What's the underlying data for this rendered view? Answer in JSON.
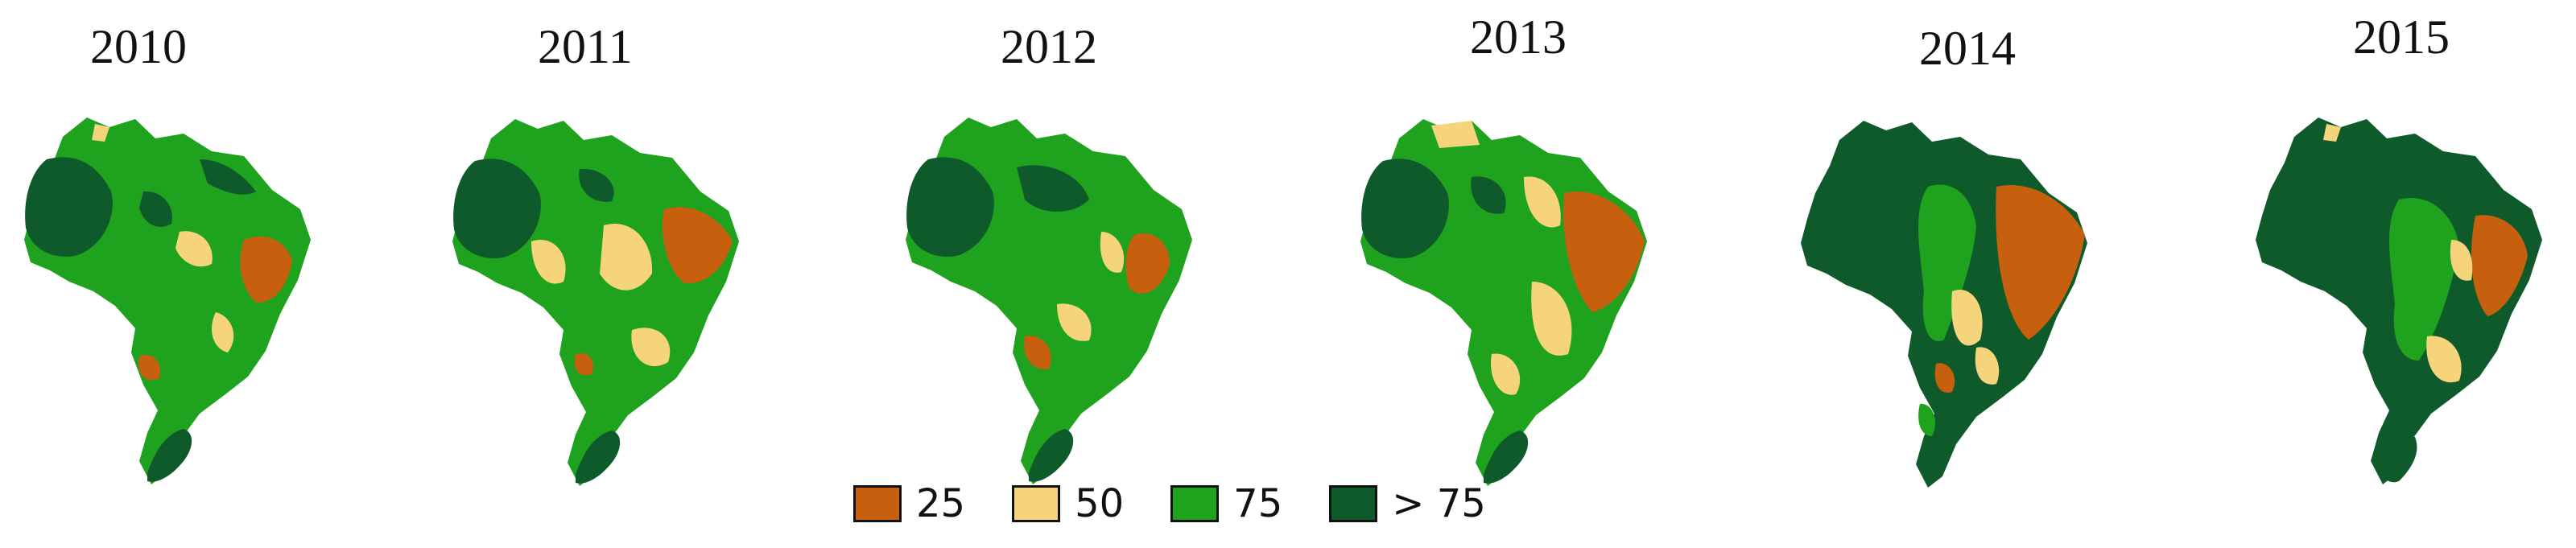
{
  "colors": {
    "c25": "#c65f0e",
    "c50": "#f6d47b",
    "c75": "#1fa21e",
    "cgt75": "#0f5a2b"
  },
  "years": [
    "2010",
    "2011",
    "2012",
    "2013",
    "2014",
    "2015"
  ],
  "legend": [
    {
      "label": "25",
      "color": "#c65f0e"
    },
    {
      "label": "50",
      "color": "#f6d47b"
    },
    {
      "label": "75",
      "color": "#1fa21e"
    },
    {
      "label": "> 75",
      "color": "#0f5a2b"
    }
  ]
}
